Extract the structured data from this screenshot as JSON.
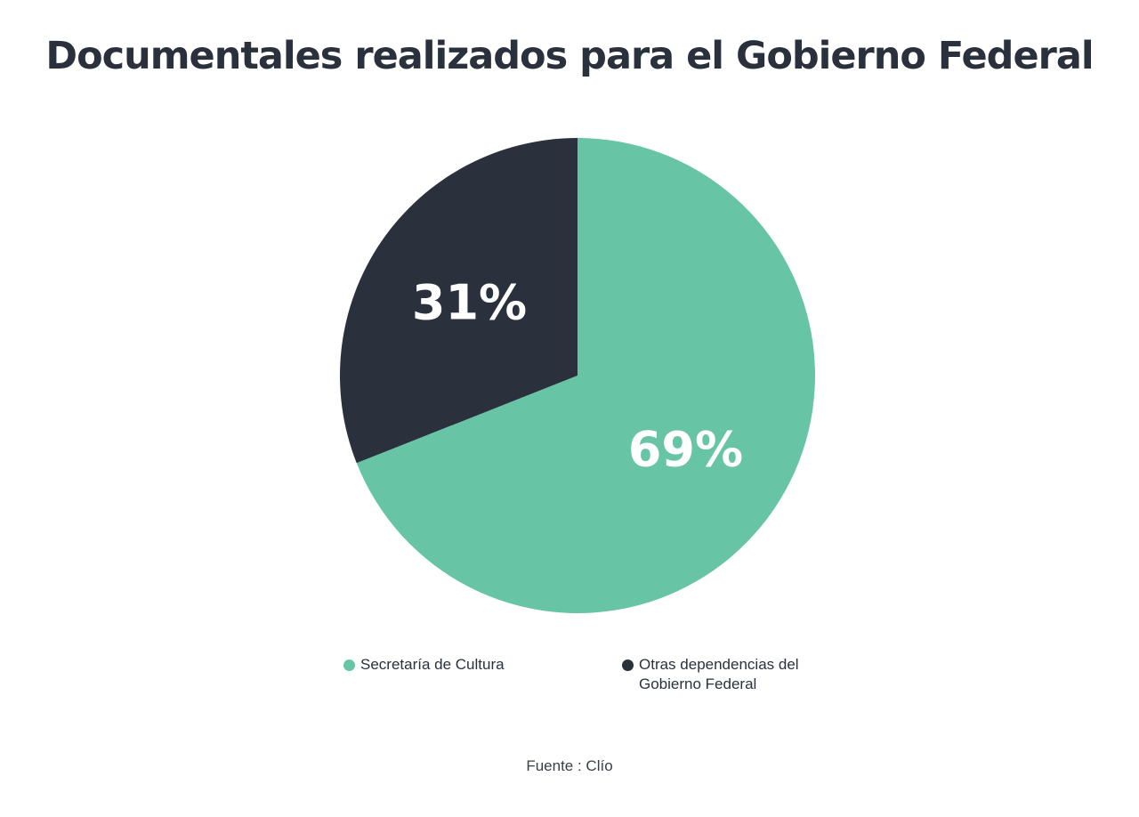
{
  "chart_data": {
    "type": "pie",
    "title": "Documentales realizados para el Gobierno Federal",
    "categories": [
      "Secretaría de Cultura",
      "Otras dependencias del Gobierno Federal"
    ],
    "values": [
      69,
      31
    ],
    "labels": [
      "69%",
      "31%"
    ],
    "colors": [
      "#67c5a5",
      "#2a313d"
    ],
    "legend": "bottom",
    "source": "Fuente : Clío"
  }
}
